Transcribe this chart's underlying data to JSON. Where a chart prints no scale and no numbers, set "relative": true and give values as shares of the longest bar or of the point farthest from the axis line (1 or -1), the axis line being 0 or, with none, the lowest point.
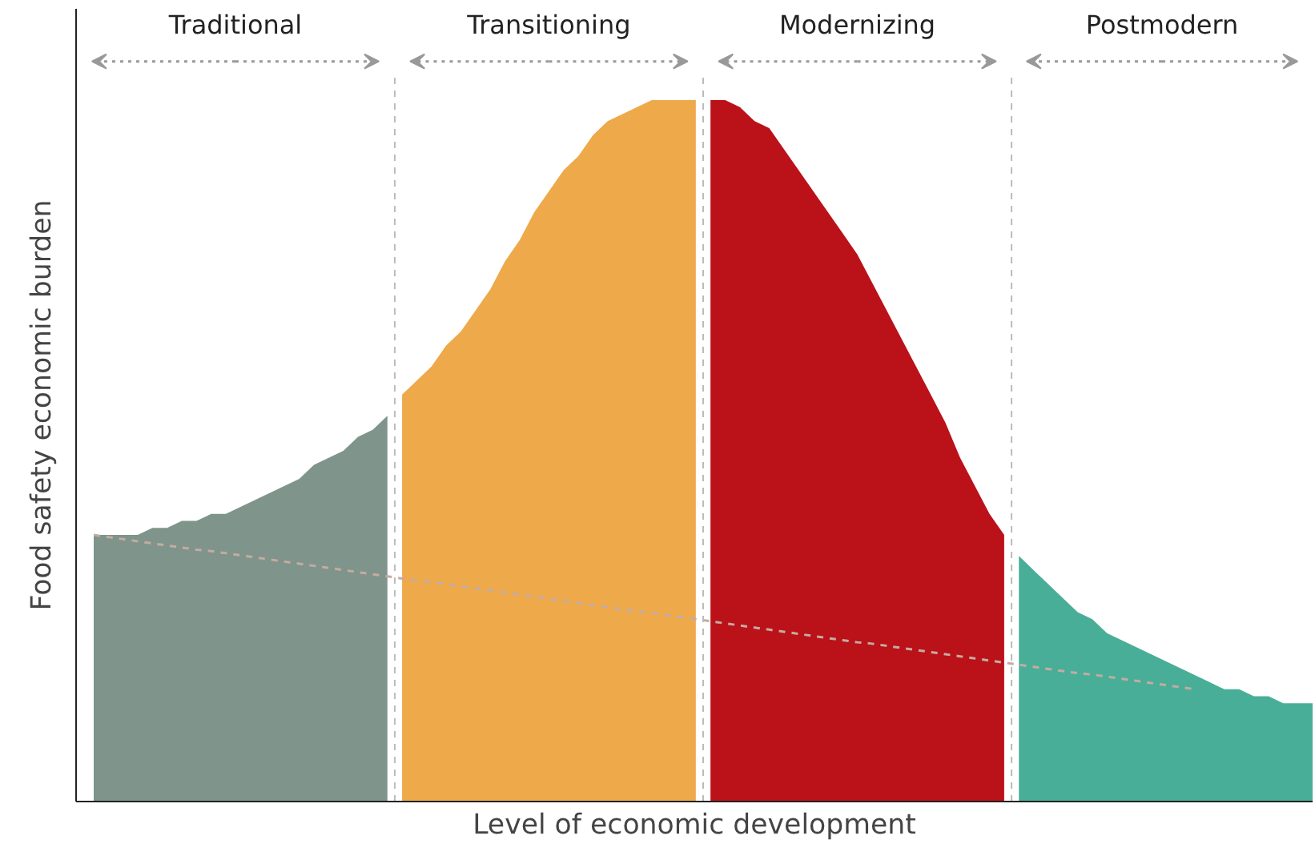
{
  "chart_data": {
    "type": "area",
    "relative": true,
    "xlabel": "Level of economic development",
    "ylabel": "Food safety economic burden",
    "grid": false,
    "categories": [
      null,
      null,
      null,
      null,
      null,
      null,
      null,
      null,
      null,
      null,
      null,
      null,
      null,
      null,
      null,
      null,
      null,
      null,
      null,
      null,
      null,
      null,
      null,
      null,
      null,
      null,
      null,
      null,
      null,
      null,
      null,
      null,
      null,
      null,
      null,
      null,
      null,
      null,
      null,
      null,
      null,
      null,
      null,
      null,
      null,
      null,
      null,
      null,
      null,
      null,
      null,
      null,
      null,
      null,
      null,
      null,
      null,
      null,
      null,
      null,
      null,
      null,
      null,
      null,
      null,
      null,
      null,
      null,
      null,
      null,
      null,
      null,
      null,
      null,
      null,
      null,
      null,
      null,
      null,
      null,
      null,
      null,
      null,
      null
    ],
    "series": [
      {
        "color": "#7f948b",
        "values": [
          0.38,
          0.38,
          0.38,
          0.38,
          0.39,
          0.39,
          0.4,
          0.4,
          0.41,
          0.41,
          0.42,
          0.43,
          0.44,
          0.45,
          0.46,
          0.48,
          0.49,
          0.5,
          0.52,
          0.53,
          0.55,
          null,
          null,
          null,
          null,
          null,
          null,
          null,
          null,
          null,
          null,
          null,
          null,
          null,
          null,
          null,
          null,
          null,
          null,
          null,
          null,
          null,
          null,
          null,
          null,
          null,
          null,
          null,
          null,
          null,
          null,
          null,
          null,
          null,
          null,
          null,
          null,
          null,
          null,
          null,
          null,
          null,
          null,
          null,
          null,
          null,
          null,
          null,
          null,
          null,
          null,
          null,
          null,
          null,
          null,
          null,
          null,
          null,
          null,
          null,
          null,
          null,
          null,
          null
        ]
      },
      {
        "color": "#eea94b",
        "values": [
          null,
          null,
          null,
          null,
          null,
          null,
          null,
          null,
          null,
          null,
          null,
          null,
          null,
          null,
          null,
          null,
          null,
          null,
          null,
          null,
          null,
          0.58,
          0.6,
          0.62,
          0.65,
          0.67,
          0.7,
          0.73,
          0.77,
          0.8,
          0.84,
          0.87,
          0.9,
          0.92,
          0.95,
          0.97,
          0.98,
          0.99,
          1.0,
          1.0,
          1.0,
          1.0,
          null,
          null,
          null,
          null,
          null,
          null,
          null,
          null,
          null,
          null,
          null,
          null,
          null,
          null,
          null,
          null,
          null,
          null,
          null,
          null,
          null,
          null,
          null,
          null,
          null,
          null,
          null,
          null,
          null,
          null,
          null,
          null,
          null,
          null,
          null,
          null,
          null,
          null,
          null,
          null,
          null,
          null
        ]
      },
      {
        "color": "#bb1119",
        "values": [
          null,
          null,
          null,
          null,
          null,
          null,
          null,
          null,
          null,
          null,
          null,
          null,
          null,
          null,
          null,
          null,
          null,
          null,
          null,
          null,
          null,
          null,
          null,
          null,
          null,
          null,
          null,
          null,
          null,
          null,
          null,
          null,
          null,
          null,
          null,
          null,
          null,
          null,
          null,
          null,
          null,
          null,
          1.0,
          1.0,
          0.99,
          0.97,
          0.96,
          0.93,
          0.9,
          0.87,
          0.84,
          0.81,
          0.78,
          0.74,
          0.7,
          0.66,
          0.62,
          0.58,
          0.54,
          0.49,
          0.45,
          0.41,
          0.38,
          null,
          null,
          null,
          null,
          null,
          null,
          null,
          null,
          null,
          null,
          null,
          null,
          null,
          null,
          null,
          null,
          null,
          null,
          null,
          null,
          null
        ]
      },
      {
        "color": "#49ae97",
        "values": [
          null,
          null,
          null,
          null,
          null,
          null,
          null,
          null,
          null,
          null,
          null,
          null,
          null,
          null,
          null,
          null,
          null,
          null,
          null,
          null,
          null,
          null,
          null,
          null,
          null,
          null,
          null,
          null,
          null,
          null,
          null,
          null,
          null,
          null,
          null,
          null,
          null,
          null,
          null,
          null,
          null,
          null,
          null,
          null,
          null,
          null,
          null,
          null,
          null,
          null,
          null,
          null,
          null,
          null,
          null,
          null,
          null,
          null,
          null,
          null,
          null,
          null,
          null,
          0.35,
          0.33,
          0.31,
          0.29,
          0.27,
          0.26,
          0.24,
          0.23,
          0.22,
          0.21,
          0.2,
          0.19,
          0.18,
          0.17,
          0.16,
          0.16,
          0.15,
          0.15,
          0.14,
          0.14,
          0.14
        ]
      },
      {
        "type": "line",
        "line_style": "dashed",
        "color": "#c4aca0",
        "values": [
          0.38,
          0.377,
          0.374,
          0.371,
          0.368,
          0.365,
          0.362,
          0.359,
          0.357,
          0.354,
          0.351,
          0.348,
          0.345,
          0.342,
          0.339,
          0.336,
          0.333,
          0.33,
          0.327,
          0.324,
          0.321,
          0.318,
          0.315,
          0.313,
          0.31,
          0.307,
          0.304,
          0.301,
          0.298,
          0.295,
          0.292,
          0.289,
          0.286,
          0.283,
          0.28,
          0.277,
          0.274,
          0.271,
          0.269,
          0.266,
          0.263,
          0.26,
          0.257,
          0.254,
          0.251,
          0.248,
          0.245,
          0.242,
          0.239,
          0.236,
          0.233,
          0.23,
          0.227,
          0.225,
          0.222,
          0.219,
          0.216,
          0.213,
          0.21,
          0.207,
          0.204,
          0.201,
          0.198,
          0.195,
          0.192,
          0.189,
          0.186,
          0.183,
          0.181,
          0.178,
          0.175,
          0.172,
          0.169,
          0.166,
          0.163,
          0.16,
          null,
          null,
          null,
          null,
          null,
          null,
          null,
          null
        ]
      }
    ],
    "ref_lines": [
      {
        "axis": "x",
        "color": "#bbbbbb",
        "line_style": "dashed"
      },
      {
        "axis": "x",
        "color": "#bbbbbb",
        "line_style": "dashed"
      },
      {
        "axis": "x",
        "color": "#bbbbbb",
        "line_style": "dashed"
      }
    ],
    "annotations": [
      "Traditional",
      "Transitioning",
      "Modernizing",
      "Postmodern"
    ]
  }
}
